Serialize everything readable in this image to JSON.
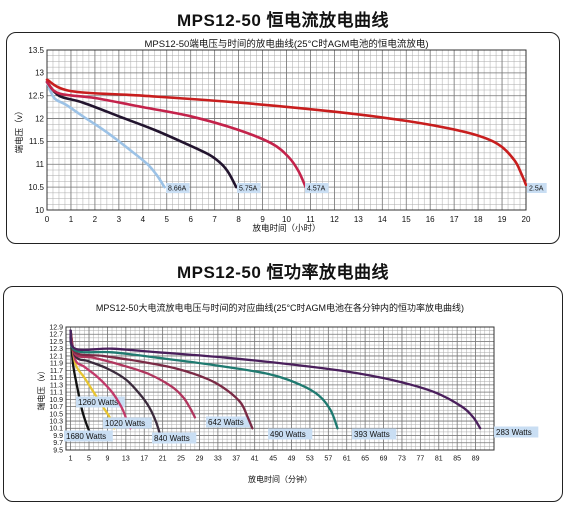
{
  "title1": "MPS12-50 恒电流放电曲线",
  "title2": "MPS12-50 恒功率放电曲线",
  "chart_data": [
    {
      "type": "line",
      "title": "MPS12-50端电压与时间的放电曲线(25°C时AGM电池的恒电流放电)",
      "xlabel": "放电时间（小时）",
      "ylabel": "端电压（v）",
      "xlim": [
        0,
        20
      ],
      "ylim": [
        10,
        13.5
      ],
      "x_ticks": [
        0,
        1,
        2,
        3,
        4,
        5,
        6,
        7,
        8,
        9,
        10,
        11,
        12,
        13,
        14,
        15,
        16,
        17,
        18,
        19,
        20
      ],
      "y_ticks": [
        10,
        10.5,
        11,
        11.5,
        12,
        12.5,
        13,
        13.5
      ],
      "grid": true,
      "series": [
        {
          "name": "8.66A",
          "color": "#9cc2e6",
          "points": [
            [
              0,
              12.8
            ],
            [
              0.3,
              12.45
            ],
            [
              0.8,
              12.3
            ],
            [
              1.5,
              12.05
            ],
            [
              2.5,
              11.7
            ],
            [
              3.5,
              11.3
            ],
            [
              4.2,
              11.0
            ],
            [
              4.6,
              10.75
            ],
            [
              4.9,
              10.5
            ]
          ]
        },
        {
          "name": "5.75A",
          "color": "#22142e",
          "points": [
            [
              0,
              12.8
            ],
            [
              0.5,
              12.5
            ],
            [
              1.5,
              12.35
            ],
            [
              3,
              12.05
            ],
            [
              4.5,
              11.75
            ],
            [
              5.8,
              11.45
            ],
            [
              6.8,
              11.2
            ],
            [
              7.3,
              11.0
            ],
            [
              7.6,
              10.8
            ],
            [
              7.9,
              10.5
            ]
          ]
        },
        {
          "name": "4.57A",
          "color": "#c4234b",
          "points": [
            [
              0,
              12.8
            ],
            [
              0.5,
              12.55
            ],
            [
              2,
              12.45
            ],
            [
              4,
              12.25
            ],
            [
              6,
              12.05
            ],
            [
              8,
              11.75
            ],
            [
              9.4,
              11.45
            ],
            [
              10.1,
              11.15
            ],
            [
              10.5,
              10.85
            ],
            [
              10.8,
              10.5
            ]
          ]
        },
        {
          "name": "2.5A",
          "color": "#c81e1e",
          "points": [
            [
              0,
              12.85
            ],
            [
              1,
              12.6
            ],
            [
              4,
              12.5
            ],
            [
              8,
              12.35
            ],
            [
              12,
              12.15
            ],
            [
              15,
              11.95
            ],
            [
              17.5,
              11.7
            ],
            [
              18.8,
              11.45
            ],
            [
              19.5,
              11.1
            ],
            [
              19.8,
              10.8
            ],
            [
              20,
              10.55
            ]
          ]
        }
      ]
    },
    {
      "type": "line",
      "title": "MPS12-50大电流放电电压与时间的对应曲线(25°C时AGM电池在各分钟内的恒功率放电曲线)",
      "xlabel": "放电时间（分钟）",
      "ylabel": "端电压（v）",
      "xlim": [
        0,
        93
      ],
      "ylim": [
        9.5,
        12.9
      ],
      "x_ticks": [
        1,
        5,
        9,
        13,
        17,
        21,
        25,
        29,
        33,
        37,
        41,
        45,
        49,
        53,
        57,
        61,
        65,
        69,
        73,
        77,
        81,
        85,
        89
      ],
      "y_ticks": [
        9.5,
        9.7,
        9.9,
        10.1,
        10.3,
        10.5,
        10.7,
        10.9,
        11.1,
        11.3,
        11.5,
        11.7,
        11.9,
        12.1,
        12.3,
        12.5,
        12.7,
        12.9
      ],
      "grid": true,
      "series": [
        {
          "name": "1680 Watts",
          "color": "#111111",
          "points": [
            [
              1,
              12.8
            ],
            [
              1.5,
              11.9
            ],
            [
              2.5,
              11.2
            ],
            [
              3.5,
              10.6
            ],
            [
              4.5,
              10.2
            ],
            [
              5.5,
              9.9
            ]
          ]
        },
        {
          "name": "1260 Watts",
          "color": "#e8c530",
          "points": [
            [
              1,
              12.8
            ],
            [
              2,
              11.9
            ],
            [
              4,
              11.5
            ],
            [
              6,
              11.1
            ],
            [
              8,
              10.7
            ],
            [
              9.5,
              10.4
            ],
            [
              10.5,
              10.1
            ]
          ]
        },
        {
          "name": "1020 Watts",
          "color": "#c23a6b",
          "points": [
            [
              1,
              12.8
            ],
            [
              2,
              12.0
            ],
            [
              4,
              11.8
            ],
            [
              7,
              11.5
            ],
            [
              10,
              11.1
            ],
            [
              12,
              10.7
            ],
            [
              13,
              10.4
            ],
            [
              14,
              10.1
            ]
          ]
        },
        {
          "name": "840 Watts",
          "color": "#3a2a3c",
          "points": [
            [
              1,
              12.8
            ],
            [
              2,
              12.1
            ],
            [
              5,
              11.95
            ],
            [
              9,
              11.75
            ],
            [
              13,
              11.45
            ],
            [
              16,
              11.05
            ],
            [
              18,
              10.7
            ],
            [
              19.5,
              10.3
            ],
            [
              20.5,
              9.9
            ]
          ]
        },
        {
          "name": "642 Watts",
          "color": "#b0365e",
          "points": [
            [
              1,
              12.8
            ],
            [
              2,
              12.15
            ],
            [
              6,
              12.05
            ],
            [
              12,
              11.85
            ],
            [
              18,
              11.6
            ],
            [
              23,
              11.25
            ],
            [
              25.5,
              10.95
            ],
            [
              27,
              10.65
            ],
            [
              28,
              10.4
            ]
          ]
        },
        {
          "name": "490 Watts",
          "color": "#7a2a45",
          "points": [
            [
              1,
              12.8
            ],
            [
              2,
              12.2
            ],
            [
              8,
              12.1
            ],
            [
              16,
              11.95
            ],
            [
              24,
              11.75
            ],
            [
              31,
              11.45
            ],
            [
              35,
              11.15
            ],
            [
              38,
              10.8
            ],
            [
              39.5,
              10.4
            ],
            [
              40.5,
              10.1
            ]
          ]
        },
        {
          "name": "393 Watts",
          "color": "#1f7a70",
          "points": [
            [
              1,
              12.8
            ],
            [
              2,
              12.25
            ],
            [
              10,
              12.2
            ],
            [
              20,
              12.05
            ],
            [
              32,
              11.85
            ],
            [
              44,
              11.6
            ],
            [
              51,
              11.3
            ],
            [
              55,
              11.0
            ],
            [
              57.5,
              10.6
            ],
            [
              59,
              10.1
            ]
          ]
        },
        {
          "name": "283 Watts",
          "color": "#4a1f5c",
          "points": [
            [
              1,
              12.8
            ],
            [
              2,
              12.3
            ],
            [
              10,
              12.3
            ],
            [
              20,
              12.2
            ],
            [
              35,
              12.05
            ],
            [
              50,
              11.85
            ],
            [
              62,
              11.65
            ],
            [
              72,
              11.4
            ],
            [
              80,
              11.1
            ],
            [
              86,
              10.7
            ],
            [
              88.5,
              10.4
            ],
            [
              90,
              10.1
            ]
          ]
        }
      ]
    }
  ]
}
